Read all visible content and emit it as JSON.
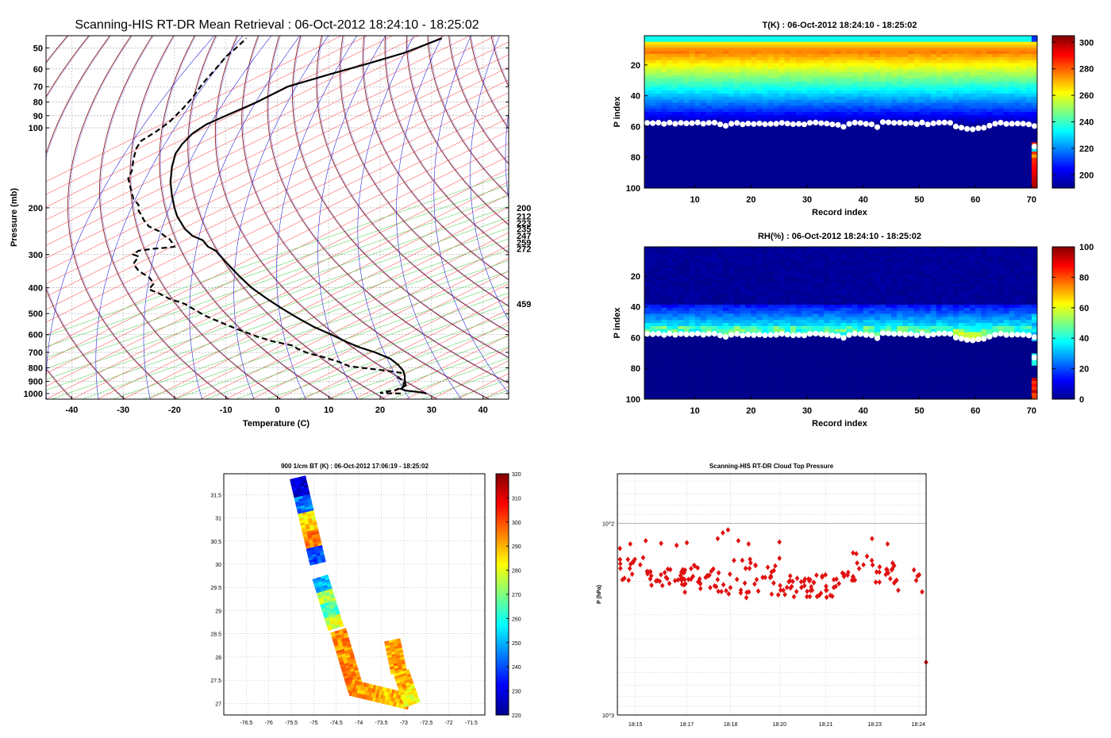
{
  "colors": {
    "dry_adiabat": "#8b1a1a",
    "moist_adiabat": "#2a2ad8",
    "isotherm": "#ff2a2a",
    "mixing_ratio": "#32c832",
    "profile": "#000000",
    "cloud_marker": "#ffffff",
    "ctp_marker": "#e01010"
  },
  "chart_data": [
    {
      "id": "skewt",
      "type": "line",
      "title": "Scanning-HIS RT-DR Mean Retrieval : 06-Oct-2012 18:24:10 - 18:25:02",
      "xlabel": "Temperature (C)",
      "ylabel": "Pressure (mb)",
      "xlim": [
        -45,
        45
      ],
      "ylim": [
        1050,
        45
      ],
      "y_scale": "log",
      "x_ticks": [
        "-40",
        "-30",
        "-20",
        "-10",
        "0",
        "10",
        "20",
        "30",
        "40"
      ],
      "y_ticks": [
        "50",
        "60",
        "70",
        "80",
        "90",
        "100",
        "200",
        "300",
        "400",
        "500",
        "600",
        "700",
        "800",
        "900",
        "1000"
      ],
      "grid": true,
      "right_labels": [
        "200",
        "212",
        "223",
        "235",
        "247",
        "259",
        "272",
        "459"
      ],
      "series": [
        {
          "style": "solid",
          "points": [
            [
              29,
              1000
            ],
            [
              28,
              990
            ],
            [
              25,
              975
            ],
            [
              24,
              960
            ],
            [
              25,
              930
            ],
            [
              24.8,
              900
            ],
            [
              24.8,
              860
            ],
            [
              24.5,
              820
            ],
            [
              23.5,
              780
            ],
            [
              22,
              740
            ],
            [
              19,
              700
            ],
            [
              16,
              670
            ],
            [
              13.5,
              640
            ],
            [
              10.5,
              600
            ],
            [
              7,
              560
            ],
            [
              4,
              520
            ],
            [
              1,
              480
            ],
            [
              -2,
              440
            ],
            [
              -5,
              400
            ],
            [
              -7.5,
              360
            ],
            [
              -10,
              320
            ],
            [
              -11,
              305
            ],
            [
              -12,
              290
            ],
            [
              -13.5,
              280
            ],
            [
              -14.5,
              265
            ],
            [
              -16.5,
              255
            ],
            [
              -18,
              240
            ],
            [
              -18.7,
              228
            ],
            [
              -19.5,
              215
            ],
            [
              -20,
              200
            ],
            [
              -20.5,
              180
            ],
            [
              -20.8,
              160
            ],
            [
              -20.5,
              140
            ],
            [
              -19.8,
              125
            ],
            [
              -18.5,
              115
            ],
            [
              -16.5,
              105
            ],
            [
              -13.8,
              97
            ],
            [
              -10,
              90
            ],
            [
              -4,
              80
            ],
            [
              2,
              70
            ],
            [
              10,
              63
            ],
            [
              18,
              57
            ],
            [
              25,
              52
            ],
            [
              32,
              46
            ]
          ]
        },
        {
          "style": "dashed",
          "points": [
            [
              24,
              1000
            ],
            [
              20,
              995
            ],
            [
              21,
              985
            ],
            [
              23,
              970
            ],
            [
              24.5,
              940
            ],
            [
              24.6,
              900
            ],
            [
              23.5,
              870
            ],
            [
              24,
              835
            ],
            [
              20,
              815
            ],
            [
              14,
              790
            ],
            [
              12,
              760
            ],
            [
              9,
              730
            ],
            [
              6,
              705
            ],
            [
              4,
              680
            ],
            [
              3,
              660
            ],
            [
              -1,
              635
            ],
            [
              -4,
              610
            ],
            [
              -8,
              570
            ],
            [
              -10,
              550
            ],
            [
              -14,
              510
            ],
            [
              -16,
              485
            ],
            [
              -18,
              460
            ],
            [
              -21,
              440
            ],
            [
              -23,
              420
            ],
            [
              -25,
              405
            ],
            [
              -24,
              385
            ],
            [
              -25,
              365
            ],
            [
              -27,
              345
            ],
            [
              -28,
              325
            ],
            [
              -27,
              305
            ],
            [
              -28,
              300
            ],
            [
              -27,
              290
            ],
            [
              -24,
              285
            ],
            [
              -21,
              282
            ],
            [
              -20,
              280
            ],
            [
              -20.5,
              270
            ],
            [
              -21,
              262
            ],
            [
              -22,
              255
            ],
            [
              -23,
              245
            ],
            [
              -25,
              235
            ],
            [
              -26,
              222
            ],
            [
              -26.5,
              212
            ],
            [
              -27,
              205
            ],
            [
              -27,
              195
            ],
            [
              -28,
              185
            ],
            [
              -28.5,
              170
            ],
            [
              -29,
              155
            ],
            [
              -28.3,
              145
            ],
            [
              -28,
              132
            ],
            [
              -27.5,
              120
            ],
            [
              -26.5,
              112
            ],
            [
              -23.5,
              103
            ],
            [
              -21,
              95
            ],
            [
              -18.5,
              85
            ],
            [
              -16.5,
              77
            ],
            [
              -14.5,
              68
            ],
            [
              -12,
              60
            ],
            [
              -10,
              54
            ],
            [
              -8,
              50
            ],
            [
              -6,
              46
            ]
          ]
        }
      ]
    },
    {
      "id": "tk",
      "type": "heatmap",
      "title": "T(K) : 06-Oct-2012 18:24:10 - 18:25:02",
      "xlabel": "Record index",
      "ylabel": "P index",
      "xlim": [
        1,
        71
      ],
      "ylim": [
        100,
        1
      ],
      "x_ticks": [
        "10",
        "20",
        "30",
        "40",
        "50",
        "60",
        "70"
      ],
      "y_ticks": [
        "20",
        "40",
        "60",
        "80",
        "100"
      ],
      "colorbar_range": [
        190,
        305
      ],
      "colorbar_ticks": [
        "200",
        "220",
        "240",
        "260",
        "280",
        "300"
      ],
      "grid": false,
      "cloud_level_p_index": [
        57.6,
        57.8,
        57.5,
        58.3,
        57.5,
        58.2,
        57.6,
        57.9,
        57.8,
        57.4,
        58.2,
        57.6,
        57.5,
        58.6,
        59.5,
        58.2,
        57.7,
        58.6,
        58.1,
        58.4,
        58.1,
        58.5,
        58.3,
        58.2,
        57.6,
        58.1,
        58.5,
        58.3,
        58.6,
        57.6,
        57.4,
        57.8,
        58.1,
        58.6,
        58.9,
        60.2,
        58.3,
        57.5,
        57.7,
        58.3,
        58.6,
        60.4,
        57.1,
        57.3,
        57.6,
        57.5,
        58.0,
        57.6,
        58.4,
        57.4,
        58.6,
        57.9,
        57.5,
        57.4,
        57.6,
        60.0,
        60.7,
        61.5,
        61.8,
        61.1,
        60.8,
        59.4,
        58.2,
        57.5,
        58.3,
        58.2,
        58.1,
        58.2,
        58.6,
        59.7
      ]
    },
    {
      "id": "rh",
      "type": "heatmap",
      "title": "RH(%) : 06-Oct-2012 18:24:10 - 18:25:02",
      "xlabel": "Record index",
      "ylabel": "P index",
      "xlim": [
        1,
        71
      ],
      "ylim": [
        100,
        1
      ],
      "x_ticks": [
        "10",
        "20",
        "30",
        "40",
        "50",
        "60",
        "70"
      ],
      "y_ticks": [
        "20",
        "40",
        "60",
        "80",
        "100"
      ],
      "colorbar_range": [
        0,
        100
      ],
      "colorbar_ticks": [
        "0",
        "20",
        "40",
        "60",
        "80",
        "100"
      ],
      "grid": false,
      "cloud_level_p_index": [
        57.6,
        57.8,
        57.5,
        58.3,
        57.5,
        58.2,
        57.6,
        57.9,
        57.8,
        57.4,
        58.2,
        57.6,
        57.5,
        58.6,
        59.5,
        58.2,
        57.7,
        58.6,
        58.1,
        58.4,
        58.1,
        58.5,
        58.3,
        58.2,
        57.6,
        58.1,
        58.5,
        58.3,
        58.6,
        57.6,
        57.4,
        57.8,
        58.1,
        58.6,
        58.9,
        60.2,
        58.3,
        57.5,
        57.7,
        58.3,
        58.6,
        60.4,
        57.1,
        57.3,
        57.6,
        57.5,
        58.0,
        57.6,
        58.4,
        57.4,
        58.6,
        57.9,
        57.5,
        57.4,
        57.6,
        60.0,
        60.7,
        61.5,
        61.8,
        61.1,
        60.8,
        59.4,
        58.2,
        57.5,
        58.3,
        58.2,
        58.1,
        58.2,
        58.6,
        59.7
      ]
    },
    {
      "id": "map",
      "type": "heatmap",
      "title": "900 1/cm BT (K) : 06-Oct-2012 17:06:19 - 18:25:02",
      "xlabel": "",
      "ylabel": "",
      "xlim": [
        -77,
        -71.2
      ],
      "ylim": [
        26.75,
        31.95
      ],
      "x_ticks": [
        "-76.5",
        "-76",
        "-75.5",
        "-75",
        "-74.5",
        "-74",
        "-73.5",
        "-73",
        "-72.5",
        "-72",
        "-71.5"
      ],
      "y_ticks": [
        "27",
        "27.5",
        "28",
        "28.5",
        "29",
        "29.5",
        "30",
        "30.5",
        "31",
        "31.5"
      ],
      "colorbar_range": [
        220,
        320
      ],
      "colorbar_ticks": [
        "220",
        "230",
        "240",
        "250",
        "260",
        "270",
        "280",
        "290",
        "300",
        "310",
        "320"
      ],
      "grid": true,
      "track_segments": [
        {
          "from": [
            -75.45,
            31.85
          ],
          "to": [
            -75.0,
            30.0
          ],
          "bt": [
            228,
            245,
            285,
            295,
            240
          ]
        },
        {
          "from": [
            -74.95,
            29.7
          ],
          "to": [
            -74.6,
            28.6
          ],
          "bt": [
            250,
            275,
            265,
            280
          ]
        },
        {
          "from": [
            -74.55,
            28.55
          ],
          "to": [
            -74.15,
            27.25
          ],
          "bt": [
            293,
            294
          ]
        },
        {
          "from": [
            -74.2,
            27.25
          ],
          "to": [
            -72.9,
            26.95
          ],
          "bt": [
            292,
            290
          ]
        },
        {
          "from": [
            -73.35,
            28.35
          ],
          "to": [
            -73.2,
            27.65
          ],
          "bt": [
            291,
            292
          ]
        },
        {
          "from": [
            -73.15,
            27.65
          ],
          "to": [
            -72.9,
            26.95
          ],
          "bt": [
            290,
            282
          ]
        }
      ]
    },
    {
      "id": "ctp",
      "type": "scatter",
      "title": "Scanning-HIS RT-DR Cloud Top Pressure",
      "xlabel": "",
      "ylabel": "P (hPa)",
      "xlim": [
        "18:14:25",
        "18:24:25"
      ],
      "ylim": [
        1000,
        55
      ],
      "y_scale": "log",
      "x_ticks": [
        "18:15",
        "18:17",
        "18:18",
        "18:20",
        "18:21",
        "18:23",
        "18:24"
      ],
      "y_ticks": [
        "10^2",
        "10^3"
      ],
      "grid": true,
      "band_hpa": [
        [
          150,
          200
        ],
        [
          170,
          212
        ],
        [
          165,
          232
        ],
        [
          170,
          235
        ],
        [
          150,
          245
        ],
        [
          150,
          245
        ],
        [
          185,
          245
        ],
        [
          185,
          245
        ],
        [
          140,
          205
        ],
        [
          155,
          210
        ],
        [
          170,
          230
        ]
      ],
      "outliers": [
        {
          "time": "18:14:30",
          "p": 135
        },
        {
          "time": "18:14:50",
          "p": 128
        },
        {
          "time": "18:15:20",
          "p": 123
        },
        {
          "time": "18:15:50",
          "p": 127
        },
        {
          "time": "18:16:20",
          "p": 130
        },
        {
          "time": "18:16:40",
          "p": 126
        },
        {
          "time": "18:17:40",
          "p": 120
        },
        {
          "time": "18:17:50",
          "p": 112
        },
        {
          "time": "18:18:00",
          "p": 108
        },
        {
          "time": "18:18:20",
          "p": 123
        },
        {
          "time": "18:18:40",
          "p": 128
        },
        {
          "time": "18:19:40",
          "p": 125
        },
        {
          "time": "18:22:40",
          "p": 120
        },
        {
          "time": "18:23:10",
          "p": 128
        },
        {
          "time": "18:24:25",
          "p": 530
        }
      ]
    }
  ]
}
